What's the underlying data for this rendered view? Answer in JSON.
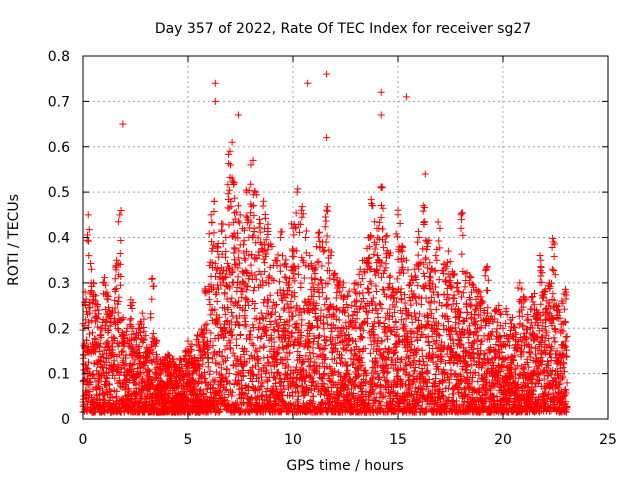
{
  "chart_data": {
    "type": "scatter",
    "title": "Day 357 of 2022, Rate Of TEC Index for receiver sg27",
    "xlabel": "GPS time / hours",
    "ylabel": "ROTI / TECUs",
    "xlim": [
      0,
      25
    ],
    "ylim": [
      0,
      0.8
    ],
    "xticks": [
      "0",
      "5",
      "10",
      "15",
      "20",
      "25"
    ],
    "yticks": [
      "0",
      "0.1",
      "0.2",
      "0.3",
      "0.4",
      "0.5",
      "0.6",
      "0.7",
      "0.8"
    ],
    "grid": true,
    "marker": "+",
    "color": "#ff0000",
    "series": [
      {
        "x": [
          0.0,
          0.1,
          0.25,
          0.4,
          0.5,
          0.6,
          0.75,
          0.9,
          1.0,
          1.2,
          1.4,
          1.6,
          1.75,
          1.9,
          2.1,
          2.3,
          2.5,
          2.7,
          2.9,
          3.1,
          3.3,
          3.5,
          3.7,
          3.9,
          4.1,
          4.3,
          4.5,
          4.7,
          4.9,
          5.1,
          5.3,
          5.5,
          5.7,
          5.9,
          6.1,
          6.25,
          6.4,
          6.6,
          6.8,
          7.0,
          7.2,
          7.4,
          7.6,
          7.8,
          8.0,
          8.2,
          8.4,
          8.6,
          8.8,
          9.0,
          9.2,
          9.4,
          9.6,
          9.8,
          10.0,
          10.2,
          10.4,
          10.6,
          10.8,
          11.0,
          11.2,
          11.4,
          11.6,
          11.8,
          12.0,
          12.2,
          12.4,
          12.6,
          12.8,
          13.0,
          13.2,
          13.4,
          13.6,
          13.8,
          14.0,
          14.2,
          14.4,
          14.6,
          14.8,
          15.0,
          15.2,
          15.4,
          15.6,
          15.8,
          16.0,
          16.2,
          16.4,
          16.6,
          16.8,
          17.0,
          17.2,
          17.4,
          17.6,
          17.8,
          18.0,
          18.2,
          18.4,
          18.6,
          18.8,
          19.0,
          19.2,
          19.4,
          19.6,
          19.8,
          20.0,
          20.2,
          20.4,
          20.6,
          20.8,
          21.0,
          21.2,
          21.4,
          21.6,
          21.8,
          22.0,
          22.2,
          22.4,
          22.6,
          22.8,
          23.0,
          6.3,
          6.3,
          10.7,
          11.6,
          11.6,
          1.9,
          7.4,
          14.2,
          14.2,
          15.4,
          7.1,
          8.1,
          16.3,
          18.0,
          22.4
        ],
        "y": [
          0.21,
          0.28,
          0.45,
          0.33,
          0.3,
          0.26,
          0.24,
          0.2,
          0.3,
          0.27,
          0.24,
          0.35,
          0.45,
          0.22,
          0.2,
          0.25,
          0.18,
          0.2,
          0.22,
          0.15,
          0.31,
          0.17,
          0.12,
          0.13,
          0.14,
          0.12,
          0.11,
          0.12,
          0.14,
          0.16,
          0.13,
          0.17,
          0.19,
          0.28,
          0.45,
          0.48,
          0.38,
          0.43,
          0.4,
          0.59,
          0.52,
          0.47,
          0.42,
          0.5,
          0.56,
          0.5,
          0.44,
          0.48,
          0.42,
          0.38,
          0.35,
          0.4,
          0.34,
          0.3,
          0.42,
          0.5,
          0.46,
          0.4,
          0.36,
          0.33,
          0.41,
          0.39,
          0.46,
          0.36,
          0.32,
          0.3,
          0.3,
          0.27,
          0.25,
          0.3,
          0.33,
          0.35,
          0.4,
          0.47,
          0.42,
          0.51,
          0.39,
          0.36,
          0.28,
          0.46,
          0.38,
          0.35,
          0.3,
          0.33,
          0.4,
          0.47,
          0.38,
          0.33,
          0.36,
          0.42,
          0.34,
          0.37,
          0.32,
          0.29,
          0.45,
          0.32,
          0.3,
          0.29,
          0.27,
          0.26,
          0.33,
          0.22,
          0.24,
          0.25,
          0.2,
          0.23,
          0.21,
          0.19,
          0.3,
          0.26,
          0.22,
          0.27,
          0.24,
          0.35,
          0.28,
          0.3,
          0.39,
          0.24,
          0.26,
          0.28,
          0.74,
          0.7,
          0.74,
          0.76,
          0.62,
          0.65,
          0.67,
          0.72,
          0.67,
          0.71,
          0.61,
          0.57,
          0.54,
          0.42,
          0.39
        ]
      }
    ]
  }
}
